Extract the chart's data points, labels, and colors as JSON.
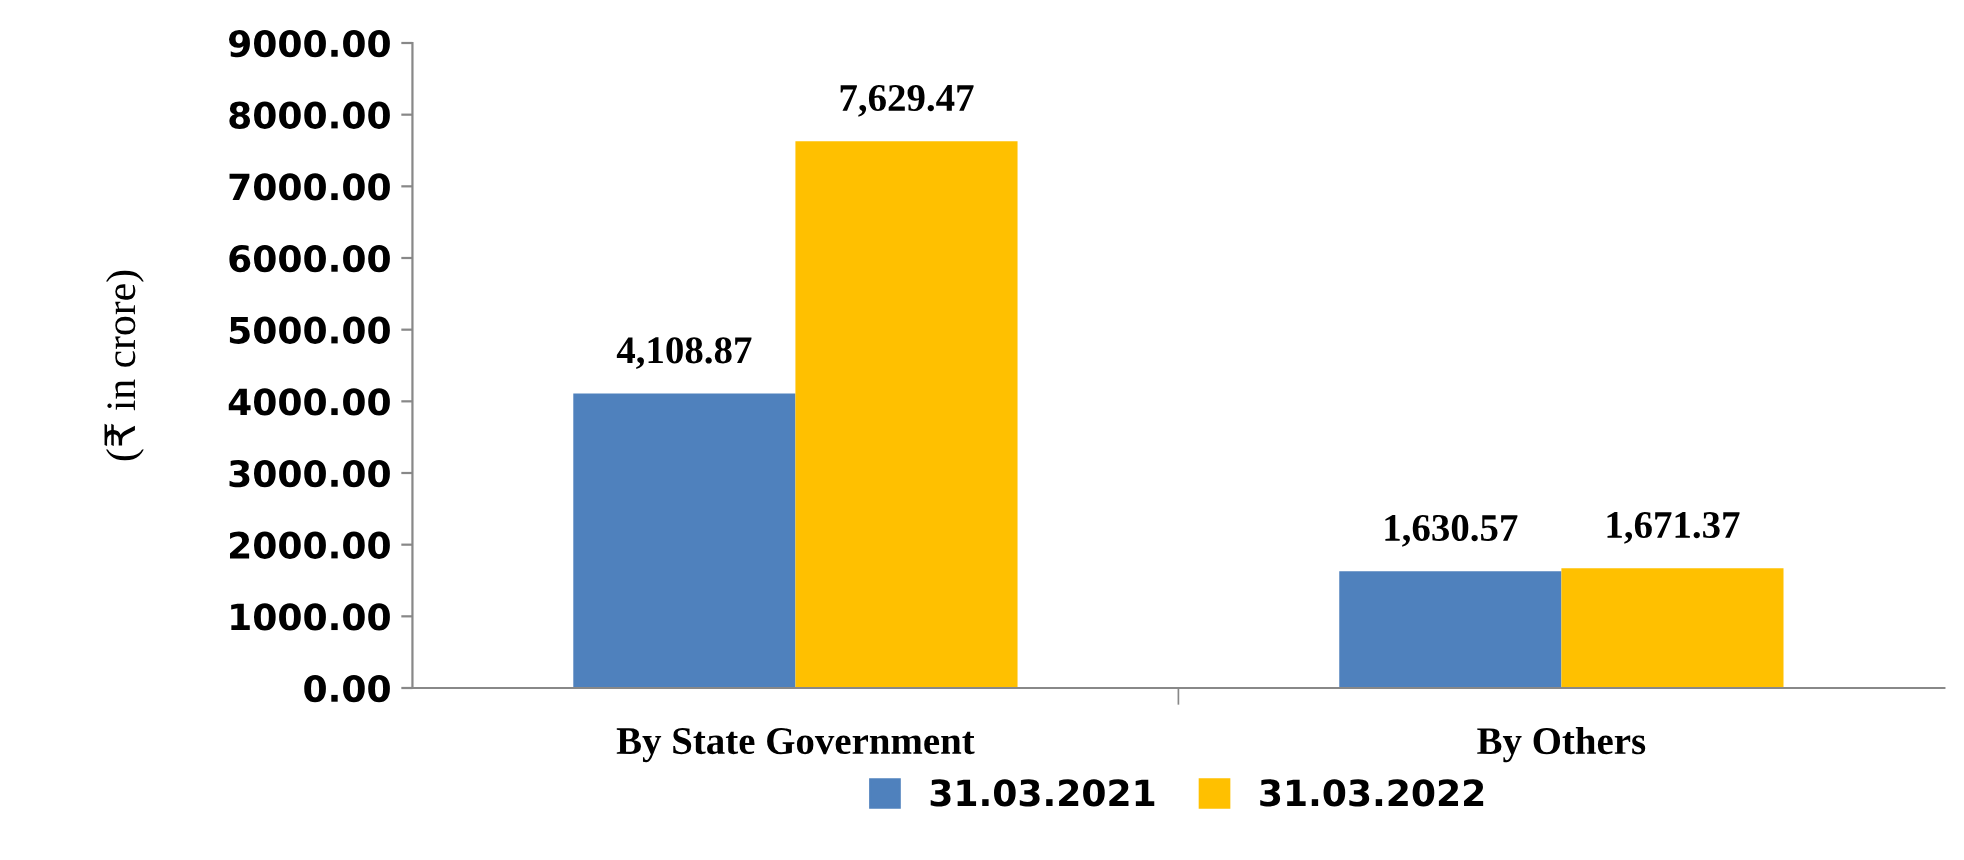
{
  "chart_data": {
    "type": "bar",
    "ylabel": "(₹ in crore)",
    "categories": [
      "By State Government",
      "By Others"
    ],
    "series": [
      {
        "name": "31.03.2021",
        "color": "#4f81bd",
        "values": [
          4108.87,
          1630.57
        ],
        "value_labels": [
          "4,108.87",
          "1,630.57"
        ]
      },
      {
        "name": "31.03.2022",
        "color": "#ffc000",
        "values": [
          7629.47,
          1671.37
        ],
        "value_labels": [
          "7,629.47",
          "1,671.37"
        ]
      }
    ],
    "ylim": [
      0,
      9000
    ],
    "yticks": [
      {
        "value": 0,
        "label": "0.00"
      },
      {
        "value": 1000,
        "label": "1000.00"
      },
      {
        "value": 2000,
        "label": "2000.00"
      },
      {
        "value": 3000,
        "label": "3000.00"
      },
      {
        "value": 4000,
        "label": "4000.00"
      },
      {
        "value": 5000,
        "label": "5000.00"
      },
      {
        "value": 6000,
        "label": "6000.00"
      },
      {
        "value": 7000,
        "label": "7000.00"
      },
      {
        "value": 8000,
        "label": "8000.00"
      },
      {
        "value": 9000,
        "label": "9000.00"
      }
    ],
    "grid": false,
    "legend": "bottom"
  }
}
